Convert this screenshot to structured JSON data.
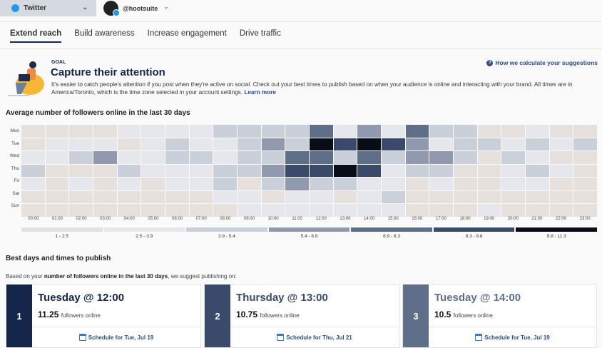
{
  "topbar": {
    "network": "Twitter",
    "account": "@hootsuite"
  },
  "tabs": [
    {
      "label": "Extend reach",
      "active": true
    },
    {
      "label": "Build awareness"
    },
    {
      "label": "Increase engagement"
    },
    {
      "label": "Drive traffic"
    }
  ],
  "goal": {
    "eyebrow": "GOAL",
    "title": "Capture their attention",
    "description": "It's easier to catch people's attention if you post when they're active on social. Check out your best times to publish based on when your audience is online and interacting with your brand. All times are in America/Toronto, which is the time zone selected in your account settings.",
    "learn_more": "Learn more",
    "how_link": "How we calculate your suggestions"
  },
  "chart_data": {
    "type": "heatmap",
    "title": "Average number of followers online in the last 30 days",
    "rows": [
      "Mon",
      "Tue",
      "Wed",
      "Thu",
      "Fri",
      "Sat",
      "Sun"
    ],
    "columns": [
      "00:00",
      "01:00",
      "02:00",
      "03:00",
      "04:00",
      "05:00",
      "06:00",
      "07:00",
      "08:00",
      "09:00",
      "10:00",
      "11:00",
      "12:00",
      "13:00",
      "14:00",
      "15:00",
      "16:00",
      "17:00",
      "18:00",
      "19:00",
      "20:00",
      "21:00",
      "22:00",
      "23:00"
    ],
    "bins": [
      "1 - 2.5",
      "2.5 - 3.9",
      "3.9 - 5.4",
      "5.4 - 6.9",
      "6.9 - 8.3",
      "8.3 - 9.8",
      "9.8 - 11.3"
    ],
    "bin_colors": [
      "#e6e1dc",
      "#e6e7ec",
      "#c9d0d9",
      "#9099ad",
      "#5f6f8a",
      "#3a4a6b",
      "#090d17"
    ],
    "cell_bin_index": [
      [
        0,
        0,
        0,
        0,
        1,
        1,
        1,
        1,
        2,
        2,
        2,
        2,
        4,
        1,
        3,
        1,
        4,
        2,
        2,
        0,
        0,
        1,
        0,
        0
      ],
      [
        0,
        1,
        1,
        1,
        0,
        1,
        2,
        1,
        1,
        2,
        3,
        2,
        6,
        5,
        6,
        5,
        3,
        1,
        2,
        2,
        1,
        2,
        1,
        2
      ],
      [
        1,
        1,
        2,
        3,
        1,
        1,
        2,
        2,
        1,
        2,
        2,
        4,
        4,
        2,
        4,
        2,
        3,
        3,
        2,
        0,
        2,
        1,
        0,
        0
      ],
      [
        2,
        0,
        0,
        0,
        2,
        1,
        1,
        1,
        2,
        2,
        3,
        5,
        5,
        6,
        5,
        1,
        2,
        2,
        0,
        0,
        1,
        2,
        1,
        0
      ],
      [
        1,
        0,
        1,
        0,
        1,
        0,
        1,
        1,
        2,
        0,
        2,
        3,
        2,
        2,
        1,
        1,
        0,
        1,
        0,
        0,
        1,
        1,
        0,
        0
      ],
      [
        0,
        0,
        0,
        0,
        0,
        0,
        0,
        0,
        1,
        1,
        0,
        1,
        1,
        0,
        1,
        2,
        0,
        0,
        0,
        0,
        0,
        0,
        0,
        0
      ],
      [
        0,
        0,
        0,
        0,
        0,
        0,
        0,
        0,
        0,
        1,
        1,
        1,
        1,
        1,
        1,
        1,
        0,
        0,
        0,
        1,
        0,
        0,
        0,
        0
      ]
    ]
  },
  "best": {
    "title": "Best days and times to publish",
    "sub_pre": "Based on your ",
    "sub_bold": "number of followers online in the last 30 days",
    "sub_post": ", we suggest publishing on:",
    "cards": [
      {
        "rank": "1",
        "time": "Tuesday @ 12:00",
        "value": "11.25",
        "unit": "followers online",
        "schedule": "Schedule for Tue, Jul 19",
        "color": "#14264b"
      },
      {
        "rank": "2",
        "time": "Thursday @ 13:00",
        "value": "10.75",
        "unit": "followers online",
        "schedule": "Schedule for Thu, Jul 21",
        "color": "#3a4a6b"
      },
      {
        "rank": "3",
        "time": "Tuesday @ 14:00",
        "value": "10.5",
        "unit": "followers online",
        "schedule": "Schedule for Tue, Jul 19",
        "color": "#5f6f8a"
      }
    ]
  }
}
